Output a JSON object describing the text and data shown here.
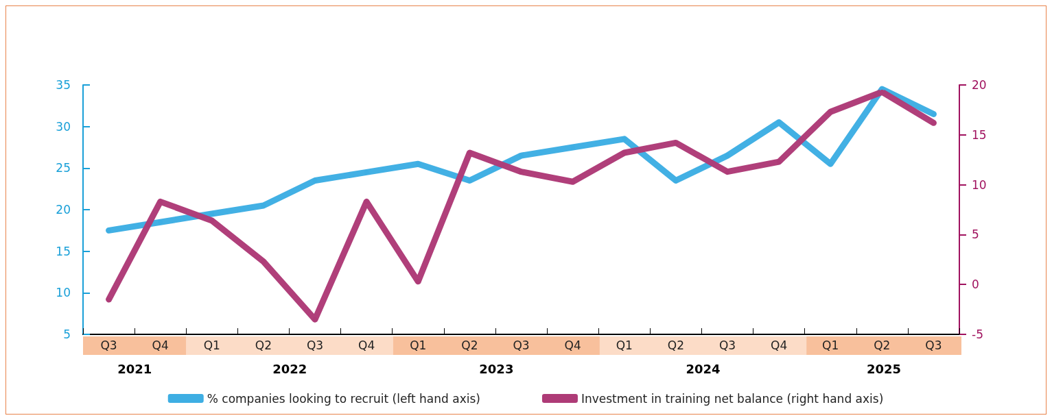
{
  "chart_data": {
    "type": "line",
    "categories": [
      "Q3",
      "Q4",
      "Q1",
      "Q2",
      "Q3",
      "Q4",
      "Q1",
      "Q2",
      "Q3",
      "Q4",
      "Q1",
      "Q2",
      "Q3",
      "Q4",
      "Q1",
      "Q2",
      "Q3"
    ],
    "series": [
      {
        "name": "% companies looking to recruit (left hand axis)",
        "color": "#3eaee3",
        "values": [
          17.5,
          18.5,
          19.5,
          20.5,
          23.5,
          24.5,
          25.5,
          23.5,
          26.5,
          27.5,
          28.5,
          23.5,
          26.5,
          30.5,
          25.5,
          34.5,
          31.5
        ]
      },
      {
        "name": "Investment in training net balance (right hand axis)",
        "color": "#ae3b77",
        "axis": "y2",
        "values": [
          -1.5,
          8.3,
          6.4,
          2.3,
          -3.5,
          8.3,
          0.3,
          13.2,
          11.3,
          10.3,
          13.2,
          14.2,
          11.3,
          12.3,
          17.3,
          19.3,
          16.2
        ]
      }
    ],
    "ylim": [
      5,
      35
    ],
    "yticks": [
      5,
      10,
      15,
      20,
      25,
      30,
      35
    ],
    "y2lim": [
      -5,
      20
    ],
    "y2ticks": [
      -5,
      0,
      5,
      10,
      15,
      20
    ],
    "annotations": [
      "2021",
      "2022",
      "2023",
      "2024",
      "2025"
    ],
    "grid": false,
    "legend": "bottom",
    "marker": "circle",
    "line_style": "solid"
  }
}
